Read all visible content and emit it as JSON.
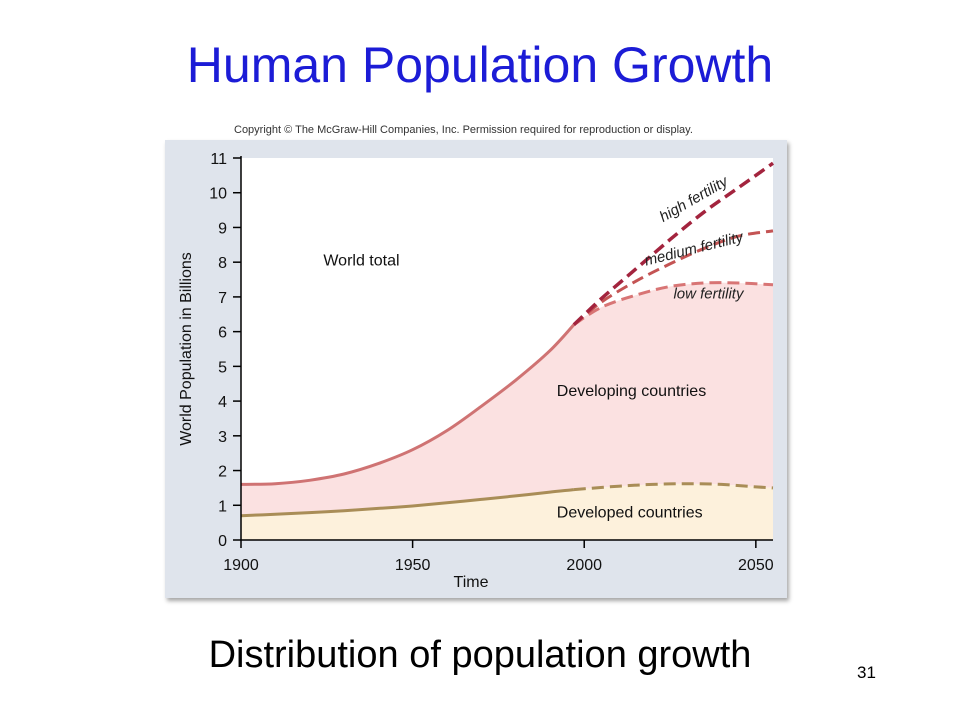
{
  "slide": {
    "title": "Human Population Growth",
    "copyright": "Copyright © The McGraw-Hill Companies, Inc. Permission required for reproduction or display.",
    "caption": "Distribution of population growth",
    "page_number": "31"
  },
  "colors": {
    "title": "#1c1cd6",
    "panel": "#dfe4ec",
    "plot_bg": "#ffffff",
    "developing_fill": "#fbe1e1",
    "developed_fill": "#fdf1dc",
    "world_line": "#cf7373",
    "developed_line": "#a98d57",
    "high_fertility": "#a3243e",
    "medium_fertility": "#c45454",
    "low_fertility": "#d87575"
  },
  "chart_data": {
    "type": "area",
    "xlabel": "Time",
    "ylabel": "World Population in Billions",
    "xlim": [
      1900,
      2055
    ],
    "ylim": [
      0,
      11
    ],
    "x_ticks": [
      1900,
      1950,
      2000,
      2050
    ],
    "y_ticks": [
      0,
      1,
      2,
      3,
      4,
      5,
      6,
      7,
      8,
      9,
      10,
      11
    ],
    "grid": false,
    "regions": [
      {
        "name": "World total"
      },
      {
        "name": "Developing countries"
      },
      {
        "name": "Developed countries"
      }
    ],
    "series": [
      {
        "key": "world_total",
        "style": "solid",
        "x": [
          1900,
          1910,
          1920,
          1930,
          1940,
          1950,
          1960,
          1970,
          1980,
          1990,
          1997
        ],
        "values": [
          1.6,
          1.62,
          1.72,
          1.9,
          2.2,
          2.6,
          3.15,
          3.85,
          4.6,
          5.45,
          6.2
        ]
      },
      {
        "key": "developed",
        "style": "solid",
        "x": [
          1900,
          1910,
          1920,
          1930,
          1940,
          1950,
          1960,
          1970,
          1980,
          1990,
          1997
        ],
        "values": [
          0.7,
          0.74,
          0.79,
          0.84,
          0.91,
          0.98,
          1.07,
          1.17,
          1.27,
          1.38,
          1.45
        ]
      },
      {
        "key": "developed_projection",
        "style": "dashed",
        "x": [
          1997,
          2010,
          2020,
          2030,
          2040,
          2050,
          2055
        ],
        "values": [
          1.45,
          1.55,
          1.6,
          1.62,
          1.6,
          1.53,
          1.5
        ]
      },
      {
        "key": "high_fertility",
        "name": "high fertility",
        "style": "dashed",
        "x": [
          1997,
          2005,
          2015,
          2025,
          2035,
          2045,
          2055
        ],
        "values": [
          6.2,
          6.95,
          7.8,
          8.65,
          9.45,
          10.15,
          10.85
        ]
      },
      {
        "key": "medium_fertility",
        "name": "medium fertility",
        "style": "dashed",
        "x": [
          1997,
          2005,
          2015,
          2025,
          2035,
          2045,
          2055
        ],
        "values": [
          6.2,
          6.85,
          7.45,
          7.95,
          8.4,
          8.75,
          8.9
        ]
      },
      {
        "key": "low_fertility",
        "name": "low fertility",
        "style": "dashed",
        "x": [
          1997,
          2005,
          2015,
          2025,
          2035,
          2045,
          2055
        ],
        "values": [
          6.2,
          6.7,
          7.05,
          7.3,
          7.4,
          7.4,
          7.35
        ]
      }
    ]
  }
}
